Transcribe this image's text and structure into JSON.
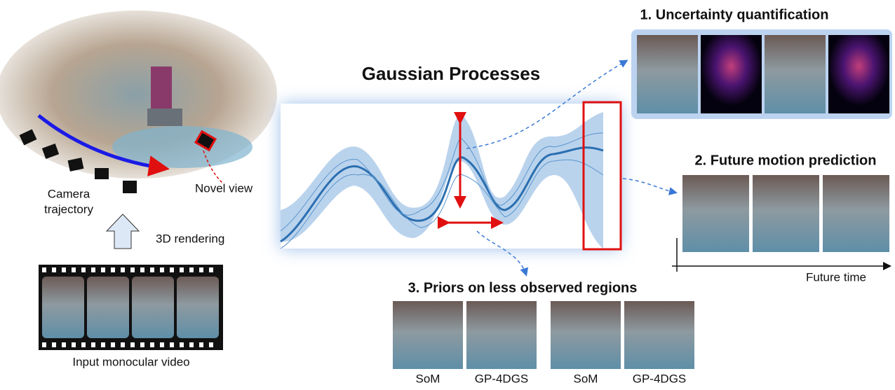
{
  "title": "Gaussian Processes",
  "left": {
    "camera_label": [
      "Camera",
      "trajectory"
    ],
    "novel_view": "Novel view",
    "rendering": "3D rendering",
    "video_caption": "Input monocular video"
  },
  "panels": [
    {
      "title": "1. Uncertainty quantification"
    },
    {
      "title": "2. Future motion prediction",
      "axis_label": "Future time"
    },
    {
      "title": "3. Priors on less observed regions",
      "image_labels": [
        "SoM",
        "GP-4DGS",
        "SoM",
        "GP-4DGS"
      ]
    }
  ]
}
